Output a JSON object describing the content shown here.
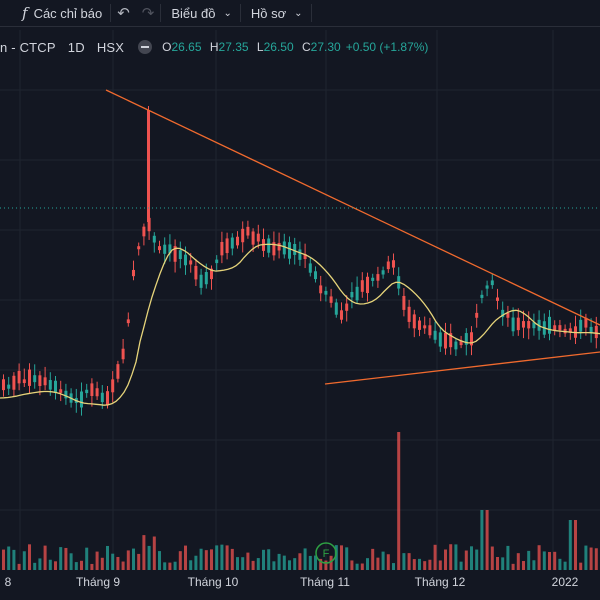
{
  "toolbar": {
    "indicators_label": "Các chỉ báo",
    "chart_menu_label": "Biểu đồ",
    "profile_menu_label": "Hồ sơ"
  },
  "legend": {
    "symbol_tail": "n - CTCP",
    "interval": "1D",
    "exchange": "HSX",
    "open_label": "O",
    "open": "26.65",
    "high_label": "H",
    "high": "27.35",
    "low_label": "L",
    "low": "26.50",
    "close_label": "C",
    "close": "27.30",
    "change": "+0.50 (+1.87%)"
  },
  "x_axis_labels": [
    "8",
    "Tháng 9",
    "Tháng 10",
    "Tháng 11",
    "Tháng 12",
    "2022"
  ],
  "event_marker": "F",
  "colors": {
    "background": "#131722",
    "up": "#26a69a",
    "down": "#ef5350",
    "moving_average": "#e6d47a",
    "trendline": "#f06a2e",
    "price_line": "#26a69a"
  },
  "chart_data": {
    "type": "candlestick",
    "annotations": [
      "descending resistance trendline",
      "ascending support trendline",
      "moving average line",
      "volume histogram"
    ],
    "last_close": 27.3,
    "price_line_value": 27.3
  }
}
